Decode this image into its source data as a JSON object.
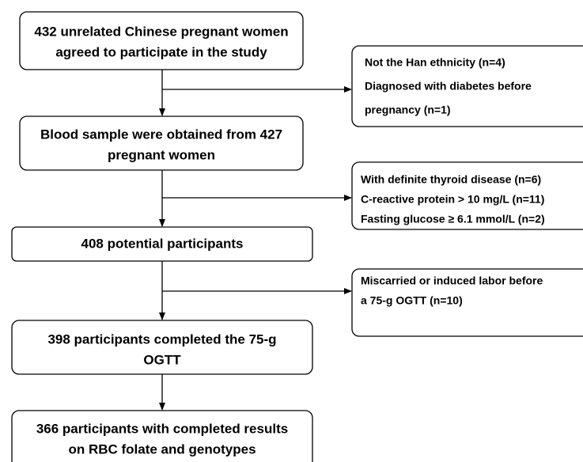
{
  "nodes": [
    {
      "lines": [
        "432 unrelated Chinese pregnant women",
        "agreed to participate in the study"
      ]
    },
    {
      "lines": [
        "Blood sample were obtained from 427",
        "pregnant women"
      ]
    },
    {
      "lines": [
        "408 potential participants"
      ]
    },
    {
      "lines": [
        "398 participants completed the 75-g",
        "OGTT"
      ]
    },
    {
      "lines": [
        "366 participants with completed results",
        "on RBC folate and genotypes"
      ]
    }
  ],
  "exclusions": [
    {
      "lines": [
        "Not the Han ethnicity (n=4)",
        "Diagnosed with diabetes before",
        "pregnancy (n=1)"
      ]
    },
    {
      "lines": [
        "With definite thyroid disease (n=6)",
        "C-reactive protein > 10 mg/L (n=11)",
        "Fasting glucose ≥ 6.1 mmol/L (n=2)"
      ]
    },
    {
      "lines": [
        "Miscarried or induced labor before",
        "a 75-g OGTT (n=10)"
      ]
    }
  ]
}
